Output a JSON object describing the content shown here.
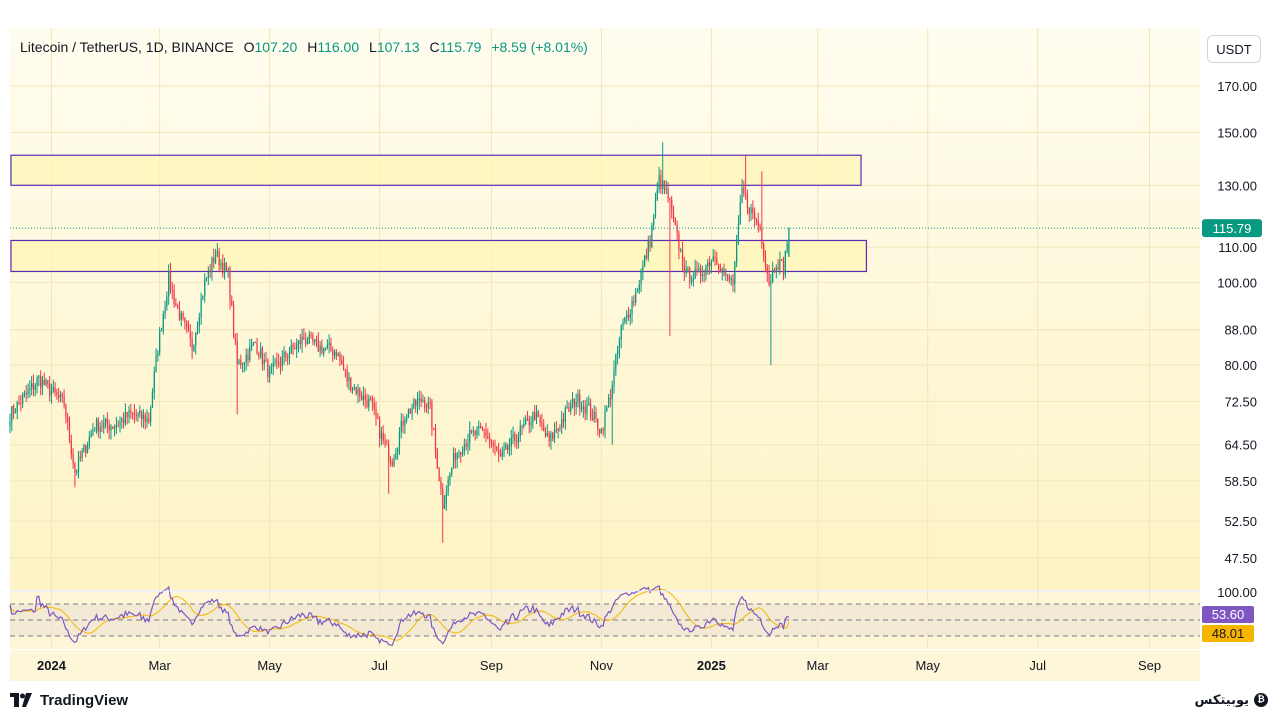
{
  "header": {
    "symbol": "Litecoin / TetherUS, 1D, BINANCE",
    "o_key": "O",
    "o_val": "107.20",
    "h_key": "H",
    "h_val": "116.00",
    "l_key": "L",
    "l_val": "107.13",
    "c_key": "C",
    "c_val": "115.79",
    "change": "+8.59 (+8.01%)"
  },
  "currency_button": "USDT",
  "footer": {
    "logo_text": "TradingView",
    "brand_right": "یوبیتکس"
  },
  "colors": {
    "up": "#089981",
    "down": "#f23645",
    "zone_border": "#5b2bb5",
    "zone_fill": "#fff6b5",
    "rsi_line": "#7e57c2",
    "rsi_ma": "#f7b500"
  },
  "chart_data": {
    "type": "candlestick",
    "scale": "log",
    "y_ticks": [
      170,
      150,
      130,
      110,
      100,
      88,
      80,
      72.5,
      64.5,
      58.5,
      52.5,
      47.5
    ],
    "y_tick_labels": [
      "170.00",
      "150.00",
      "130.00",
      "110.00",
      "100.00",
      "88.00",
      "80.00",
      "72.50",
      "64.50",
      "58.50",
      "52.50",
      "47.50"
    ],
    "x_start": "2023-12-09",
    "x_end": "2025-09-29",
    "x_ticks": [
      {
        "date": "2024-01-01",
        "label": "2024",
        "bold": true
      },
      {
        "date": "2024-03-01",
        "label": "Mar",
        "bold": false
      },
      {
        "date": "2024-05-01",
        "label": "May",
        "bold": false
      },
      {
        "date": "2024-07-01",
        "label": "Jul",
        "bold": false
      },
      {
        "date": "2024-09-01",
        "label": "Sep",
        "bold": false
      },
      {
        "date": "2024-11-01",
        "label": "Nov",
        "bold": false
      },
      {
        "date": "2025-01-01",
        "label": "2025",
        "bold": true
      },
      {
        "date": "2025-03-01",
        "label": "Mar",
        "bold": false
      },
      {
        "date": "2025-05-01",
        "label": "May",
        "bold": false
      },
      {
        "date": "2025-07-01",
        "label": "Jul",
        "bold": false
      },
      {
        "date": "2025-09-01",
        "label": "Sep",
        "bold": false
      }
    ],
    "last_price": 115.79,
    "last_price_label": "115.79",
    "zones": [
      {
        "top": 141,
        "bottom": 130,
        "end_date": "2025-03-25"
      },
      {
        "top": 112,
        "bottom": 103,
        "end_date": "2025-03-28"
      }
    ],
    "anchors": [
      [
        "2023-12-09",
        70
      ],
      [
        "2023-12-25",
        77
      ],
      [
        "2024-01-08",
        72
      ],
      [
        "2024-01-14",
        60
      ],
      [
        "2024-01-25",
        68
      ],
      [
        "2024-02-05",
        68
      ],
      [
        "2024-02-14",
        70
      ],
      [
        "2024-02-24",
        69
      ],
      [
        "2024-02-29",
        84
      ],
      [
        "2024-03-06",
        101
      ],
      [
        "2024-03-10",
        94
      ],
      [
        "2024-03-19",
        84
      ],
      [
        "2024-03-26",
        100
      ],
      [
        "2024-04-01",
        108
      ],
      [
        "2024-04-08",
        102
      ],
      [
        "2024-04-13",
        80
      ],
      [
        "2024-04-18",
        82
      ],
      [
        "2024-04-23",
        85
      ],
      [
        "2024-05-01",
        78
      ],
      [
        "2024-05-10",
        82
      ],
      [
        "2024-05-20",
        86
      ],
      [
        "2024-05-28",
        84
      ],
      [
        "2024-06-07",
        83
      ],
      [
        "2024-06-13",
        77
      ],
      [
        "2024-06-20",
        74
      ],
      [
        "2024-06-26",
        72
      ],
      [
        "2024-07-04",
        64
      ],
      [
        "2024-07-08",
        62
      ],
      [
        "2024-07-15",
        70
      ],
      [
        "2024-07-25",
        73
      ],
      [
        "2024-07-29",
        71
      ],
      [
        "2024-08-05",
        55
      ],
      [
        "2024-08-12",
        63
      ],
      [
        "2024-08-20",
        66
      ],
      [
        "2024-08-28",
        67
      ],
      [
        "2024-09-06",
        62
      ],
      [
        "2024-09-15",
        66
      ],
      [
        "2024-09-25",
        70
      ],
      [
        "2024-10-03",
        65
      ],
      [
        "2024-10-12",
        70
      ],
      [
        "2024-10-18",
        73
      ],
      [
        "2024-10-25",
        71
      ],
      [
        "2024-11-01",
        67
      ],
      [
        "2024-11-06",
        74
      ],
      [
        "2024-11-12",
        88
      ],
      [
        "2024-11-20",
        97
      ],
      [
        "2024-11-28",
        112
      ],
      [
        "2024-12-03",
        132
      ],
      [
        "2024-12-08",
        126
      ],
      [
        "2024-12-12",
        115
      ],
      [
        "2024-12-18",
        102
      ],
      [
        "2024-12-25",
        102
      ],
      [
        "2025-01-03",
        108
      ],
      [
        "2025-01-09",
        101
      ],
      [
        "2025-01-13",
        100
      ],
      [
        "2025-01-18",
        128
      ],
      [
        "2025-01-24",
        120
      ],
      [
        "2025-01-28",
        116
      ],
      [
        "2025-02-02",
        100
      ],
      [
        "2025-02-06",
        106
      ],
      [
        "2025-02-10",
        104
      ],
      [
        "2025-02-13",
        115.79
      ]
    ],
    "spikes": [
      [
        "2024-01-14",
        57.5,
        0
      ],
      [
        "2024-03-06",
        105,
        1
      ],
      [
        "2024-04-13",
        70,
        0
      ],
      [
        "2024-07-06",
        56.5,
        0
      ],
      [
        "2024-08-05",
        49.5,
        0
      ],
      [
        "2024-11-07",
        64.5,
        0
      ],
      [
        "2024-12-05",
        146,
        1
      ],
      [
        "2024-12-09",
        86.5,
        0
      ],
      [
        "2025-01-20",
        141,
        1
      ],
      [
        "2025-01-29",
        135,
        1
      ],
      [
        "2025-02-03",
        80,
        0
      ]
    ],
    "rsi": {
      "label_value": "53.60",
      "ma_label_value": "48.01",
      "top_label": "100.00"
    }
  }
}
